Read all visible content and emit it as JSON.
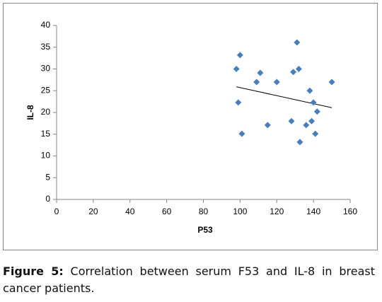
{
  "chart_data": {
    "type": "scatter",
    "x_label": "P53",
    "y_label": "IL-8",
    "x": [
      98,
      100,
      99,
      101,
      109,
      111,
      115,
      120,
      128,
      129,
      131,
      132,
      132.6,
      136,
      138,
      139,
      140,
      141,
      142,
      150
    ],
    "values": [
      30,
      33.2,
      22.3,
      15.1,
      27,
      29.1,
      17.1,
      27,
      18,
      29.3,
      36.1,
      30,
      13.2,
      17.1,
      25,
      18,
      22.3,
      15.1,
      20.2,
      27
    ],
    "color": "#4a7ebb",
    "trendline": {
      "x": [
        98,
        150
      ],
      "y": [
        25.9,
        21.1
      ],
      "color": "#000000"
    },
    "xlim": [
      0,
      160
    ],
    "xticks": [
      0,
      20,
      40,
      60,
      80,
      100,
      120,
      140,
      160
    ],
    "ylim": [
      0,
      40
    ],
    "yticks": [
      0,
      5,
      10,
      15,
      20,
      25,
      30,
      35,
      40
    ],
    "grid": false
  },
  "caption": {
    "label": "Figure 5:",
    "text": "Correlation between serum F53 and IL-8 in breast cancer patients."
  }
}
